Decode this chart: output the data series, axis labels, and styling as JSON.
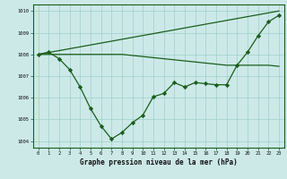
{
  "line1_x": [
    0,
    1,
    2,
    3,
    4,
    5,
    6,
    7,
    8,
    9,
    10,
    11,
    12,
    13,
    14,
    15,
    16,
    17,
    18,
    19,
    20,
    21,
    22,
    23
  ],
  "line1_y": [
    1008.0,
    1008.1,
    1007.8,
    1007.3,
    1006.5,
    1005.5,
    1004.7,
    1004.1,
    1004.4,
    1004.85,
    1005.2,
    1006.05,
    1006.2,
    1006.7,
    1006.5,
    1006.7,
    1006.65,
    1006.6,
    1006.6,
    1007.5,
    1008.1,
    1008.85,
    1009.5,
    1009.8
  ],
  "line2_x": [
    0,
    1,
    2,
    3,
    4,
    5,
    6,
    7,
    8,
    9,
    10,
    11,
    12,
    13,
    14,
    15,
    16,
    17,
    18,
    19,
    20,
    21,
    22,
    23
  ],
  "line2_y": [
    1008.0,
    1008.0,
    1008.0,
    1008.0,
    1008.0,
    1008.0,
    1008.0,
    1008.0,
    1008.0,
    1007.95,
    1007.9,
    1007.85,
    1007.8,
    1007.75,
    1007.7,
    1007.65,
    1007.6,
    1007.55,
    1007.5,
    1007.5,
    1007.5,
    1007.5,
    1007.5,
    1007.45
  ],
  "line3_x": [
    0,
    23
  ],
  "line3_y": [
    1008.0,
    1010.0
  ],
  "bg_color": "#cce9e8",
  "grid_color": "#9fcfcc",
  "line_color": "#1a5e1a",
  "xlabel": "Graphe pression niveau de la mer (hPa)",
  "xlim": [
    -0.5,
    23.5
  ],
  "ylim": [
    1003.7,
    1010.3
  ],
  "yticks": [
    1004,
    1005,
    1006,
    1007,
    1008,
    1009,
    1010
  ],
  "xticks": [
    0,
    1,
    2,
    3,
    4,
    5,
    6,
    7,
    8,
    9,
    10,
    11,
    12,
    13,
    14,
    15,
    16,
    17,
    18,
    19,
    20,
    21,
    22,
    23
  ]
}
